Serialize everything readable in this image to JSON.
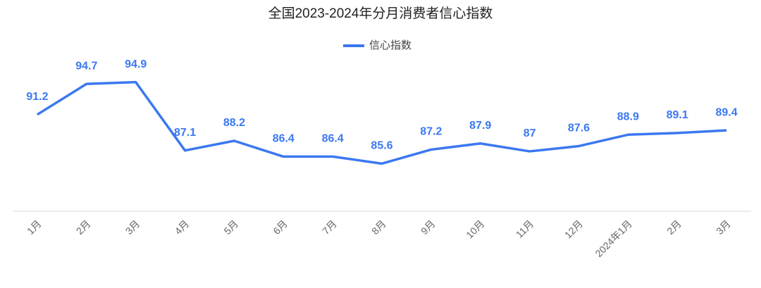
{
  "chart_data": {
    "type": "line",
    "title": "全国2023-2024年分月消费者信心指数",
    "categories": [
      "1月",
      "2月",
      "3月",
      "4月",
      "5月",
      "6月",
      "7月",
      "8月",
      "9月",
      "10月",
      "11月",
      "12月",
      "2024年1月",
      "2月",
      "3月"
    ],
    "series": [
      {
        "name": "信心指数",
        "color": "#3b78f0",
        "values": [
          91.2,
          94.7,
          94.9,
          87.1,
          88.2,
          86.4,
          86.4,
          85.6,
          87.2,
          87.9,
          87,
          87.6,
          88.9,
          89.1,
          89.4
        ]
      }
    ],
    "ylim": [
      80,
      96
    ],
    "grid": false
  }
}
